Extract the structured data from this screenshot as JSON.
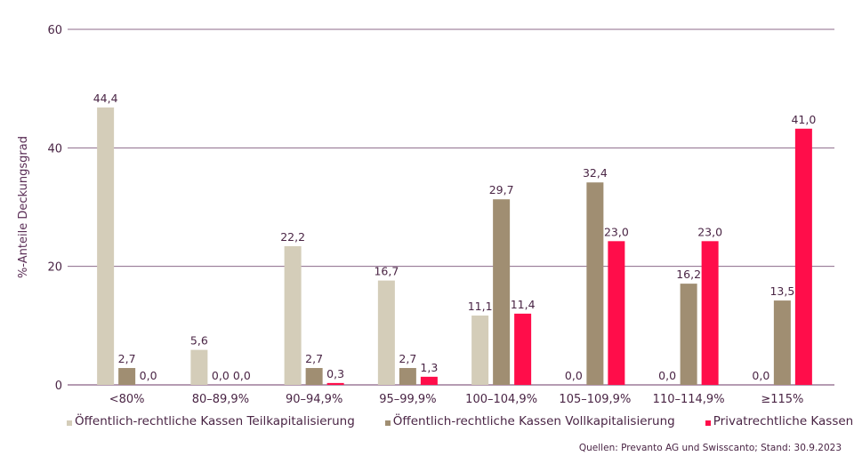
{
  "chart_data": {
    "type": "bar",
    "title": "",
    "xlabel": "",
    "ylabel": "%-Anteile Deckungsgrad",
    "ylim": [
      0,
      60
    ],
    "yticks": [
      0,
      20,
      40,
      60
    ],
    "grid": true,
    "legend_position": "bottom",
    "categories": [
      "<80%",
      "80–89,9%",
      "90–94,9%",
      "95–99,9%",
      "100–104,9%",
      "105–109,9%",
      "110–114,9%",
      "≥115%"
    ],
    "series": [
      {
        "name": "Öffentlich-rechtliche Kassen Teilkapitalisierung",
        "color": "#d4cdb9",
        "values": [
          44.4,
          5.6,
          22.2,
          16.7,
          11.1,
          0.0,
          0.0,
          0.0
        ],
        "labels": [
          "44,4",
          "5,6",
          "22,2",
          "16,7",
          "11,1",
          "0,0",
          "0,0",
          "0,0"
        ]
      },
      {
        "name": "Öffentlich-rechtliche Kassen Vollkapitalisierung",
        "color": "#a08e72",
        "values": [
          2.7,
          0.0,
          2.7,
          2.7,
          29.7,
          32.4,
          16.2,
          13.5
        ],
        "labels": [
          "2,7",
          "0,0",
          "2,7",
          "2,7",
          "29,7",
          "32,4",
          "16,2",
          "13,5"
        ]
      },
      {
        "name": "Privatrechtliche Kassen",
        "color": "#ff0d4a",
        "values": [
          0.0,
          0.0,
          0.3,
          1.3,
          11.4,
          23.0,
          23.0,
          41.0
        ],
        "labels": [
          "0,0",
          "0,0",
          "0,3",
          "1,3",
          "11,4",
          "23,0",
          "23,0",
          "41,0"
        ]
      }
    ],
    "ytick_labels": [
      "0",
      "20",
      "40",
      "60"
    ],
    "grid_color": "#8c6a8a"
  },
  "source": "Quellen: Prevanto AG und Swisscanto; Stand: 30.9.2023"
}
